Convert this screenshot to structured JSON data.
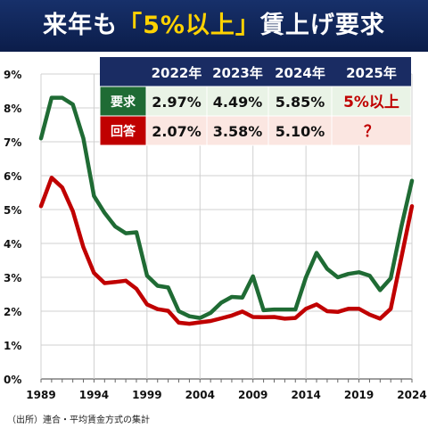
{
  "title": {
    "prefix": "来年も",
    "highlight": "「5%以上」",
    "suffix": "賃上げ要求"
  },
  "source": "（出所）連合・平均賃金方式の集計",
  "colors": {
    "demand": "#1f6b34",
    "actual": "#c00000",
    "table_header": "#1a2c63",
    "demand_row": "#e9f3e6",
    "actual_row": "#fbe6e1",
    "highlight_text": "#c00000"
  },
  "table": {
    "header_years": [
      "2022年",
      "2023年",
      "2024年",
      "2025年"
    ],
    "rows": [
      {
        "label": "要求",
        "values": [
          "2.97%",
          "4.49%",
          "5.85%",
          "5%以上"
        ]
      },
      {
        "label": "回答",
        "values": [
          "2.07%",
          "3.58%",
          "5.10%",
          "？"
        ]
      }
    ]
  },
  "chart_data": {
    "type": "line",
    "title": "",
    "xlabel": "",
    "ylabel": "",
    "xlim": [
      1989,
      2024
    ],
    "ylim": [
      0,
      9
    ],
    "x_ticks": [
      1989,
      1994,
      1999,
      2004,
      2009,
      2014,
      2019,
      2024
    ],
    "y_ticks": [
      "0%",
      "1%",
      "2%",
      "3%",
      "4%",
      "5%",
      "6%",
      "7%",
      "8%",
      "9%"
    ],
    "grid": true,
    "x": [
      1989,
      1990,
      1991,
      1992,
      1993,
      1994,
      1995,
      1996,
      1997,
      1998,
      1999,
      2000,
      2001,
      2002,
      2003,
      2004,
      2005,
      2006,
      2007,
      2008,
      2009,
      2010,
      2011,
      2012,
      2013,
      2014,
      2015,
      2016,
      2017,
      2018,
      2019,
      2020,
      2021,
      2022,
      2023,
      2024
    ],
    "series": [
      {
        "name": "要求",
        "color": "#1f6b34",
        "values": [
          7.1,
          8.3,
          8.3,
          8.1,
          7.1,
          5.4,
          4.9,
          4.5,
          4.3,
          4.33,
          3.05,
          2.75,
          2.7,
          2.0,
          1.85,
          1.8,
          1.95,
          2.25,
          2.42,
          2.4,
          3.03,
          2.03,
          2.05,
          2.05,
          2.05,
          3.0,
          3.72,
          3.25,
          3.0,
          3.1,
          3.15,
          3.05,
          2.62,
          2.97,
          4.49,
          5.85
        ]
      },
      {
        "name": "回答",
        "color": "#c00000",
        "values": [
          5.1,
          5.94,
          5.65,
          4.95,
          3.89,
          3.13,
          2.83,
          2.86,
          2.9,
          2.66,
          2.2,
          2.06,
          2.01,
          1.66,
          1.63,
          1.67,
          1.71,
          1.79,
          1.87,
          1.99,
          1.83,
          1.82,
          1.83,
          1.78,
          1.8,
          2.07,
          2.2,
          2.0,
          1.98,
          2.07,
          2.07,
          1.9,
          1.78,
          2.07,
          3.58,
          5.1
        ]
      }
    ]
  }
}
